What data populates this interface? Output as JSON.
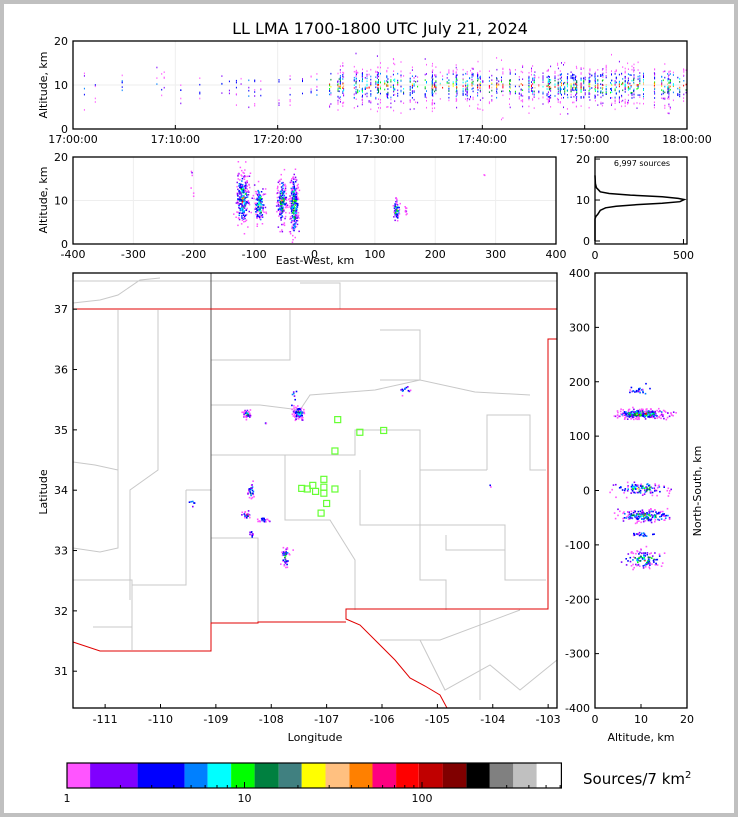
{
  "title": "LL LMA 1700-1800 UTC July 21, 2024",
  "chart_data": [
    {
      "id": "time_height",
      "type": "scatter",
      "xlabel": "",
      "ylabel": "Altitude, km",
      "xticks": [
        "17:00:00",
        "17:10:00",
        "17:20:00",
        "17:30:00",
        "17:40:00",
        "17:50:00",
        "18:00:00"
      ],
      "xlim_minutes": [
        0,
        60
      ],
      "ylim": [
        0,
        20
      ],
      "yticks": [
        "0",
        "10",
        "20"
      ],
      "activity": [
        {
          "start_min": 0,
          "end_min": 25,
          "columns": 20,
          "alt_center": 9.5
        },
        {
          "start_min": 25,
          "end_min": 60,
          "columns": 170,
          "alt_center": 10
        }
      ]
    },
    {
      "id": "east_west_height",
      "type": "scatter",
      "xlabel": "East-West, km",
      "ylabel": "Altitude, km",
      "xlim": [
        -400,
        400
      ],
      "xticks": [
        "-400",
        "-300",
        "-200",
        "-100",
        "0",
        "100",
        "200",
        "300",
        "400"
      ],
      "ylim": [
        0,
        20
      ],
      "yticks": [
        "0",
        "10",
        "20"
      ],
      "clusters": [
        {
          "x": -120,
          "alt": 10.5,
          "sx": 5,
          "salt": 3,
          "n": 260
        },
        {
          "x": -92,
          "alt": 9,
          "sx": 4,
          "salt": 2.2,
          "n": 140
        },
        {
          "x": -55,
          "alt": 10,
          "sx": 4,
          "salt": 2.5,
          "n": 170
        },
        {
          "x": -35,
          "alt": 9,
          "sx": 3.5,
          "salt": 3.5,
          "n": 260
        },
        {
          "x": 135,
          "alt": 8,
          "sx": 2.5,
          "salt": 1.3,
          "n": 60
        },
        {
          "x": 150,
          "alt": 8,
          "sx": 1.5,
          "salt": 0.8,
          "n": 10
        },
        {
          "x": -205,
          "alt": 16,
          "sx": 2,
          "salt": 2,
          "n": 6
        },
        {
          "x": 280,
          "alt": 16.5,
          "sx": 1,
          "salt": 0.5,
          "n": 2
        }
      ]
    },
    {
      "id": "altitude_histogram",
      "type": "line",
      "annotation": "6,997 sources",
      "xlim": [
        0,
        520
      ],
      "xticks": [
        "0",
        "500"
      ],
      "ylim": [
        0,
        20
      ],
      "yticks": [
        "0",
        "10",
        "20"
      ],
      "points": [
        [
          0,
          16
        ],
        [
          2,
          14
        ],
        [
          8,
          13
        ],
        [
          30,
          12
        ],
        [
          80,
          11.6
        ],
        [
          200,
          11.2
        ],
        [
          380,
          10.8
        ],
        [
          470,
          10.4
        ],
        [
          505,
          10.1
        ],
        [
          480,
          9.6
        ],
        [
          380,
          9.2
        ],
        [
          250,
          8.9
        ],
        [
          120,
          8.5
        ],
        [
          60,
          8.1
        ],
        [
          30,
          7.5
        ],
        [
          15,
          6.5
        ],
        [
          5,
          6
        ],
        [
          0,
          5.4
        ],
        [
          0,
          0
        ]
      ]
    },
    {
      "id": "plan_view",
      "type": "scatter",
      "xlabel": "Longitude",
      "ylabel": "Latitude",
      "xlim": [
        -111.58,
        -102.84
      ],
      "ylim": [
        30.39,
        37.6
      ],
      "xticks": [
        "-111",
        "-110",
        "-109",
        "-108",
        "-107",
        "-106",
        "-105",
        "-104",
        "-103"
      ],
      "yticks": [
        "31",
        "32",
        "33",
        "34",
        "35",
        "36",
        "37"
      ],
      "clusters": [
        {
          "lon": -108.45,
          "lat": 35.27,
          "slon": 0.04,
          "slat": 0.03,
          "n": 40
        },
        {
          "lon": -107.52,
          "lat": 35.29,
          "slon": 0.05,
          "slat": 0.05,
          "n": 90
        },
        {
          "lon": -107.6,
          "lat": 35.55,
          "slon": 0.03,
          "slat": 0.08,
          "n": 8
        },
        {
          "lon": -108.1,
          "lat": 35.12,
          "slon": 0.01,
          "slat": 0.01,
          "n": 3
        },
        {
          "lon": -105.6,
          "lat": 35.65,
          "slon": 0.06,
          "slat": 0.04,
          "n": 12
        },
        {
          "lon": -108.38,
          "lat": 34.0,
          "slon": 0.03,
          "slat": 0.07,
          "n": 30
        },
        {
          "lon": -108.45,
          "lat": 33.6,
          "slon": 0.04,
          "slat": 0.03,
          "n": 25
        },
        {
          "lon": -108.15,
          "lat": 33.52,
          "slon": 0.04,
          "slat": 0.02,
          "n": 25
        },
        {
          "lon": -108.37,
          "lat": 33.28,
          "slon": 0.03,
          "slat": 0.02,
          "n": 10
        },
        {
          "lon": -107.75,
          "lat": 32.9,
          "slon": 0.04,
          "slat": 0.1,
          "n": 45
        },
        {
          "lon": -109.45,
          "lat": 33.8,
          "slon": 0.02,
          "slat": 0.03,
          "n": 6
        },
        {
          "lon": -104.05,
          "lat": 34.08,
          "slon": 0.02,
          "slat": 0.01,
          "n": 2
        }
      ],
      "stations": [
        [
          -106.8,
          35.17
        ],
        [
          -106.4,
          34.96
        ],
        [
          -105.97,
          34.99
        ],
        [
          -106.85,
          34.65
        ],
        [
          -107.05,
          34.18
        ],
        [
          -107.25,
          34.08
        ],
        [
          -107.35,
          34.02
        ],
        [
          -107.45,
          34.03
        ],
        [
          -107.2,
          33.98
        ],
        [
          -107.05,
          33.95
        ],
        [
          -106.85,
          34.02
        ],
        [
          -107.0,
          33.78
        ],
        [
          -107.1,
          33.62
        ],
        [
          -107.05,
          34.05
        ]
      ]
    },
    {
      "id": "altitude_north_south",
      "type": "scatter",
      "xlabel": "Altitude, km",
      "ylabel": "North-South, km",
      "xlim": [
        0,
        20
      ],
      "xticks": [
        "0",
        "10",
        "20"
      ],
      "ylim": [
        -400,
        400
      ],
      "yticks": [
        "400",
        "300",
        "200",
        "100",
        "0",
        "-100",
        "-200",
        "-300",
        "-400"
      ],
      "clusters": [
        {
          "alt": 10,
          "y": 142,
          "salt": 2.5,
          "sy": 4,
          "n": 300
        },
        {
          "alt": 9,
          "y": 185,
          "salt": 1,
          "sy": 3,
          "n": 25
        },
        {
          "alt": 10,
          "y": 5,
          "salt": 2.5,
          "sy": 6,
          "n": 120
        },
        {
          "alt": 10.5,
          "y": -45,
          "salt": 2.5,
          "sy": 6,
          "n": 180
        },
        {
          "alt": 10,
          "y": -80,
          "salt": 1,
          "sy": 2,
          "n": 20
        },
        {
          "alt": 10.5,
          "y": -125,
          "salt": 1.8,
          "sy": 8,
          "n": 110
        }
      ]
    }
  ],
  "colorbar": {
    "label": "Sources/7 km",
    "label_sup": "2",
    "ticks": [
      {
        "value": 1,
        "label": "1"
      },
      {
        "value": 10,
        "label": "10"
      },
      {
        "value": 100,
        "label": "100"
      }
    ],
    "bounds": [
      1,
      1.35,
      2.5,
      4.6,
      6.2,
      8.4,
      11.4,
      15.6,
      21,
      28.6,
      39,
      52.6,
      71.5,
      96,
      131,
      178,
      241,
      327,
      443,
      610
    ],
    "colors": [
      "#ff55ff",
      "#8000ff",
      "#0000ff",
      "#0080ff",
      "#00ffff",
      "#00ff00",
      "#008040",
      "#408080",
      "#ffff00",
      "#ffc080",
      "#ff8000",
      "#ff0080",
      "#ff0000",
      "#c00000",
      "#800000",
      "#000000",
      "#808080",
      "#c0c0c0",
      "#ffffff"
    ]
  }
}
